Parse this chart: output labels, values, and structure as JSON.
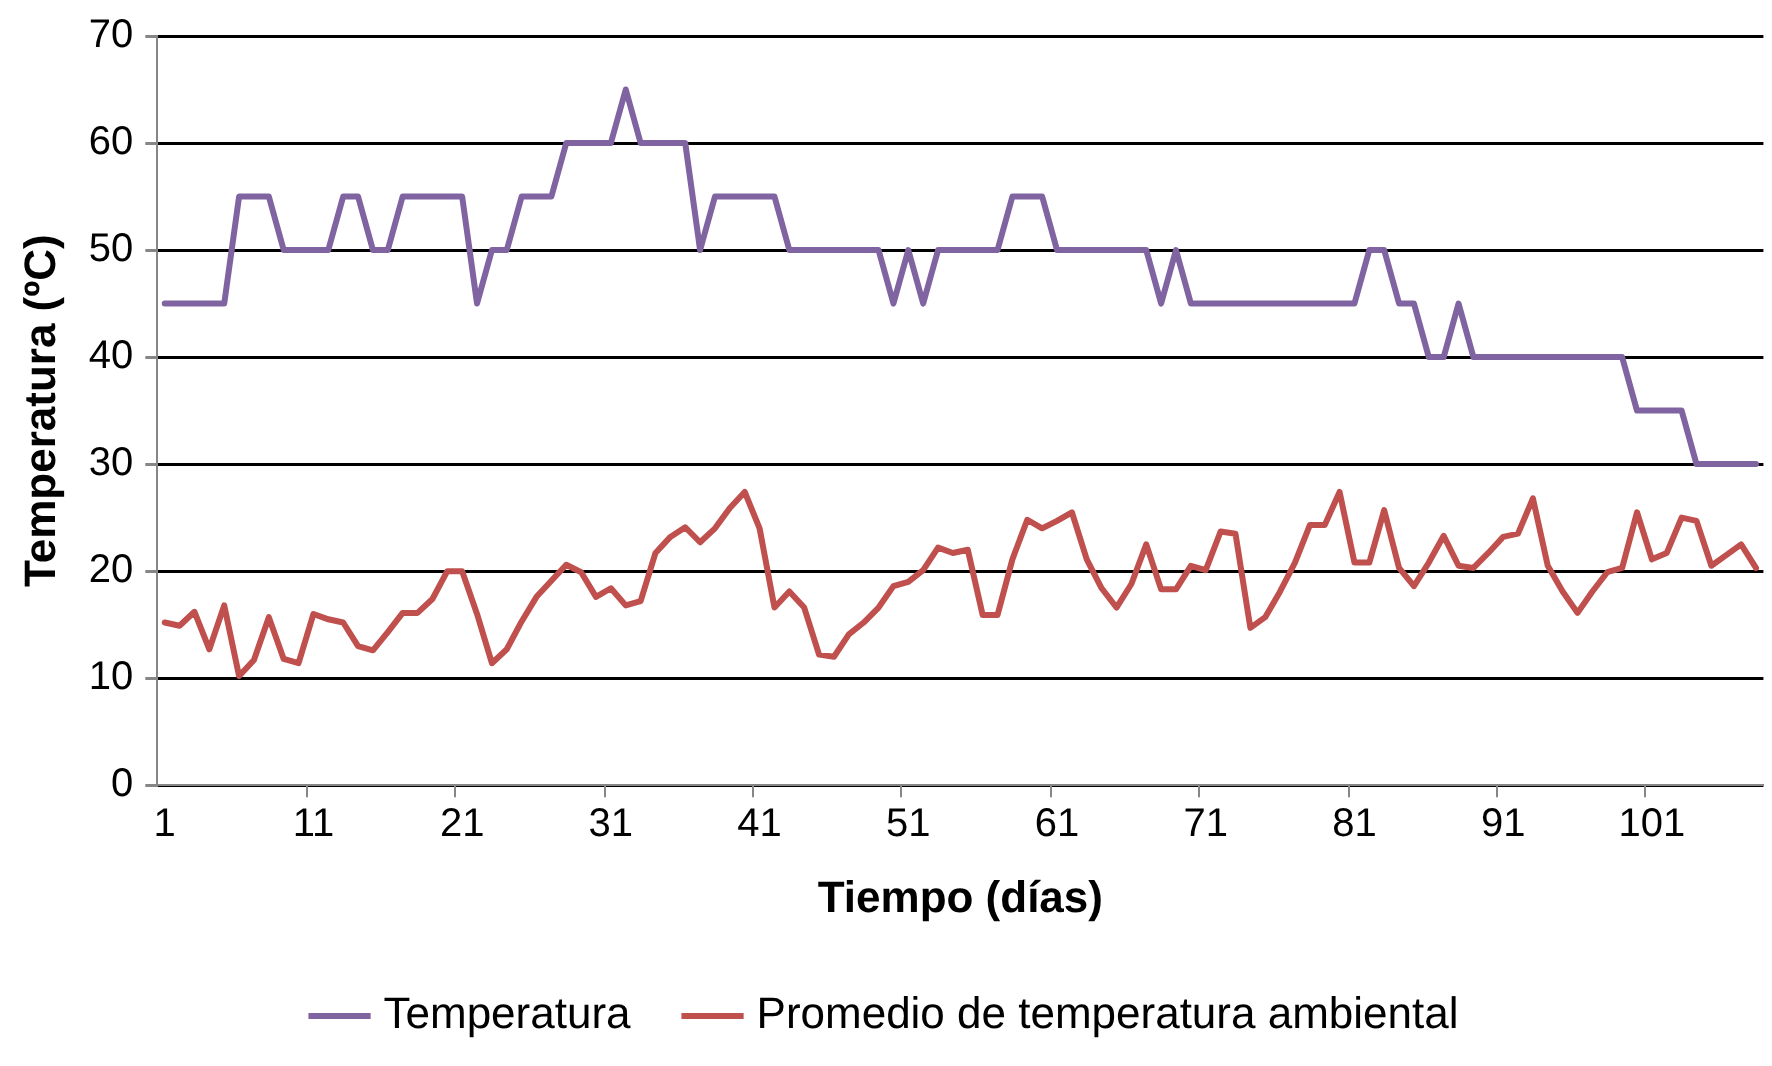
{
  "chart_data": {
    "type": "line",
    "xlabel": "Tiempo (días)",
    "ylabel": "Temperatura (ºC)",
    "categories": [
      "1",
      null,
      null,
      null,
      null,
      null,
      null,
      null,
      null,
      null,
      "11",
      null,
      null,
      null,
      null,
      null,
      null,
      null,
      null,
      null,
      "21",
      null,
      null,
      null,
      null,
      null,
      null,
      null,
      null,
      null,
      "31",
      null,
      null,
      null,
      null,
      null,
      null,
      null,
      null,
      null,
      "41",
      null,
      null,
      null,
      null,
      null,
      null,
      null,
      null,
      null,
      "51",
      null,
      null,
      null,
      null,
      null,
      null,
      null,
      null,
      null,
      "61",
      null,
      null,
      null,
      null,
      null,
      null,
      null,
      null,
      null,
      "71",
      null,
      null,
      null,
      null,
      null,
      null,
      null,
      null,
      null,
      "81",
      null,
      null,
      null,
      null,
      null,
      null,
      null,
      null,
      null,
      "91",
      null,
      null,
      null,
      null,
      null,
      null,
      null,
      null,
      null,
      "101",
      null,
      null,
      null,
      null,
      null,
      null,
      null
    ],
    "series": [
      {
        "name": "Temperatura",
        "color": "#8064a2",
        "values": [
          45,
          45,
          45,
          45,
          45,
          55,
          55,
          55,
          50,
          50,
          50,
          50,
          55,
          55,
          50,
          50,
          55,
          55,
          55,
          55,
          55,
          45,
          50,
          50,
          55,
          55,
          55,
          60,
          60,
          60,
          60,
          65,
          60,
          60,
          60,
          60,
          50,
          55,
          55,
          55,
          55,
          55,
          50,
          50,
          50,
          50,
          50,
          50,
          50,
          45,
          50,
          45,
          50,
          50,
          50,
          50,
          50,
          55,
          55,
          55,
          50,
          50,
          50,
          50,
          50,
          50,
          50,
          45,
          50,
          45,
          45,
          45,
          45,
          45,
          45,
          45,
          45,
          45,
          45,
          45,
          45,
          50,
          50,
          45,
          45,
          40,
          40,
          45,
          40,
          40,
          40,
          40,
          40,
          40,
          40,
          40,
          40,
          40,
          40,
          35,
          35,
          35,
          35,
          30,
          30,
          30,
          30,
          30
        ]
      },
      {
        "name": "Promedio de temperatura ambiental",
        "color": "#c0504d",
        "values": [
          15.2,
          14.9,
          16.2,
          12.7,
          16.8,
          10.2,
          11.7,
          15.7,
          11.8,
          11.4,
          16,
          15.5,
          15.2,
          13,
          12.6,
          14.3,
          16.1,
          16.1,
          17.4,
          20,
          20,
          16,
          11.4,
          12.7,
          15.3,
          17.6,
          19.1,
          20.6,
          19.9,
          17.6,
          18.4,
          16.8,
          17.2,
          21.7,
          23.2,
          24.1,
          22.7,
          24,
          25.9,
          27.4,
          24,
          16.6,
          18.1,
          16.6,
          12.2,
          12,
          14.1,
          15.2,
          16.6,
          18.6,
          19,
          20.1,
          22.2,
          21.7,
          22,
          15.9,
          15.9,
          21.1,
          24.8,
          24,
          24.7,
          25.5,
          21.1,
          18.4,
          16.6,
          18.8,
          22.5,
          18.3,
          18.3,
          20.5,
          20.1,
          23.7,
          23.5,
          14.7,
          15.7,
          18.1,
          20.8,
          24.3,
          24.3,
          27.4,
          20.8,
          20.8,
          25.7,
          20.3,
          18.6,
          20.8,
          23.3,
          20.5,
          20.3,
          21.7,
          23.2,
          23.5,
          26.8,
          20.5,
          18.1,
          16.1,
          18.1,
          19.9,
          20.3,
          25.5,
          21.1,
          21.7,
          25,
          24.7,
          20.5,
          21.5,
          22.5,
          20.3
        ]
      }
    ],
    "ylim": [
      0,
      70
    ],
    "yticks": [
      0,
      10,
      20,
      30,
      40,
      50,
      60,
      70
    ],
    "grid": "y",
    "legend": "bottom",
    "marker": "none",
    "line_style": "solid"
  }
}
